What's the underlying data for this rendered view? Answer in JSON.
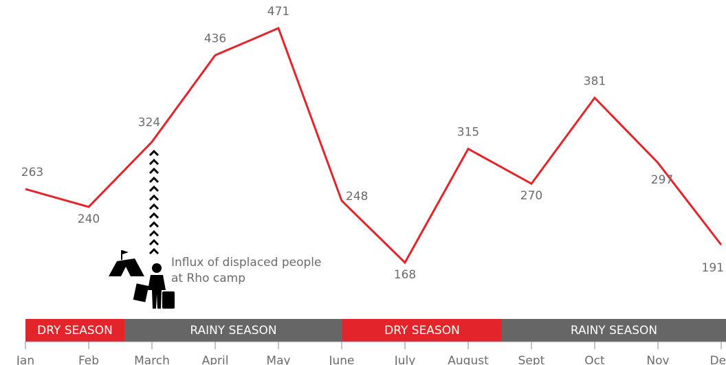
{
  "chart_data": {
    "type": "line",
    "categories": [
      "Jan",
      "Feb",
      "March",
      "April",
      "May",
      "June",
      "July",
      "August",
      "Sept",
      "Oct",
      "Nov",
      "Dec"
    ],
    "series": [
      {
        "color": "#e3242b",
        "values": [
          263,
          240,
          324,
          436,
          471,
          248,
          168,
          315,
          270,
          381,
          297,
          191
        ]
      }
    ],
    "annotation": [
      "Influx of displaced people",
      "at Rho camp"
    ],
    "seasons": [
      {
        "label": "DRY SEASON",
        "color": "#e3242b"
      },
      {
        "label": "RAINY SEASON",
        "color": "#666666"
      },
      {
        "label": "DRY SEASON",
        "color": "#e3242b"
      },
      {
        "label": "RAINY SEASON",
        "color": "#666666"
      }
    ]
  }
}
